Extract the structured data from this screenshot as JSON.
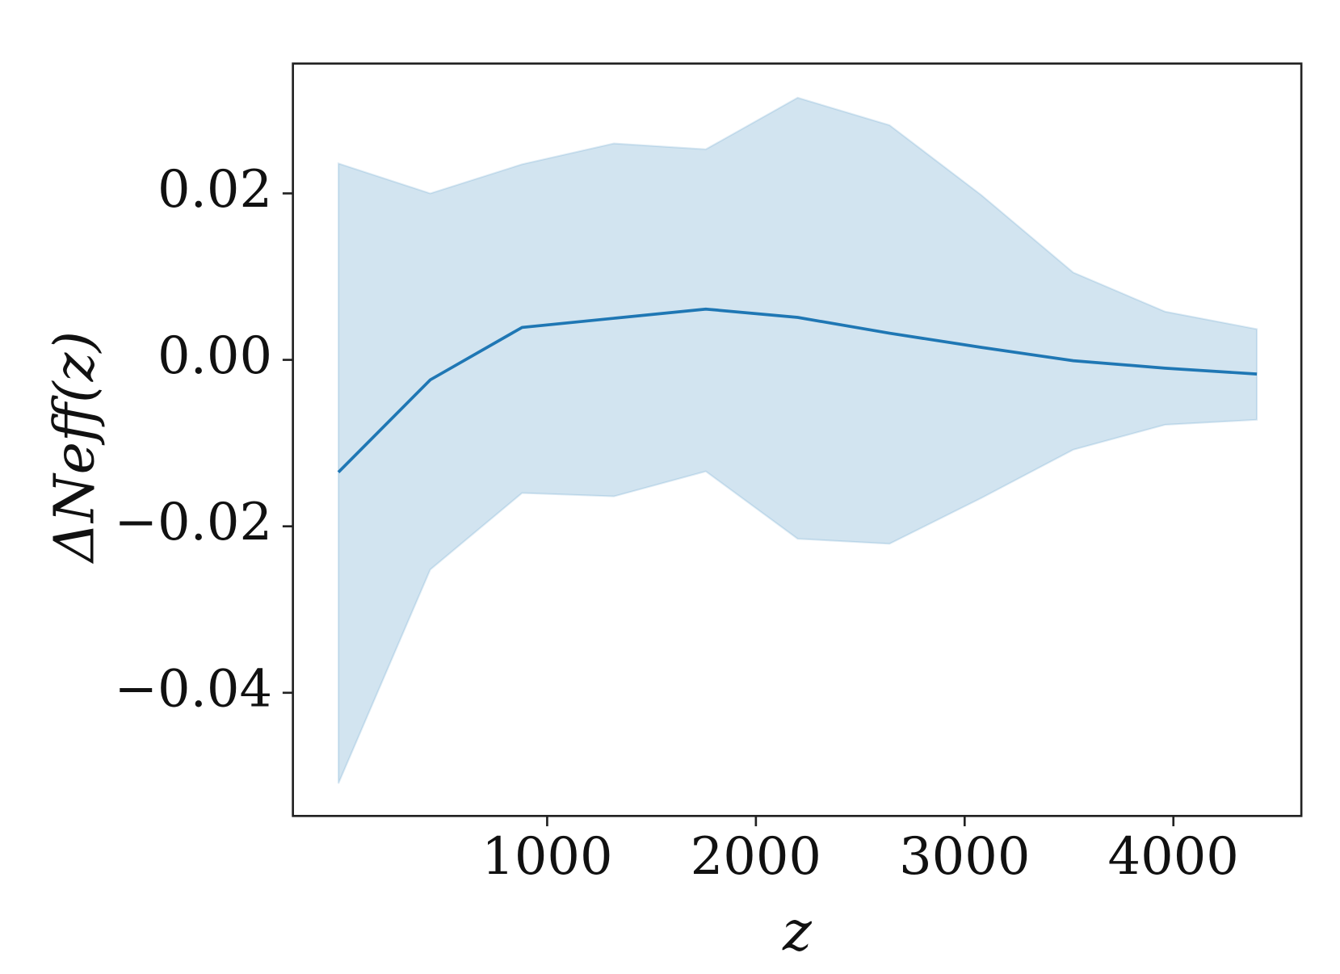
{
  "chart_data": {
    "type": "line",
    "xlabel": "z",
    "ylabel": "ΔNeff(z)",
    "x": [
      0,
      440,
      880,
      1320,
      1760,
      2200,
      2640,
      3080,
      3520,
      3960,
      4400
    ],
    "series": [
      {
        "color": "#1f77b4",
        "values": [
          -0.0135,
          -0.0024,
          0.0039,
          0.005,
          0.0061,
          0.0051,
          0.0032,
          0.0015,
          -0.0001,
          -0.001,
          -0.0017
        ],
        "upper": [
          0.0236,
          0.02,
          0.0235,
          0.026,
          0.0253,
          0.0315,
          0.0282,
          0.0198,
          0.0105,
          0.0058,
          0.0037
        ],
        "lower": [
          -0.0509,
          -0.0252,
          -0.016,
          -0.0164,
          -0.0134,
          -0.0215,
          -0.0221,
          -0.0166,
          -0.0108,
          -0.0078,
          -0.0072
        ]
      }
    ],
    "xlim": [
      -218,
      4613
    ],
    "ylim": [
      -0.0548,
      0.0356
    ],
    "xticks": [
      1000,
      2000,
      3000,
      4000
    ],
    "yticks": [
      {
        "value": -0.04,
        "label": "−0.04"
      },
      {
        "value": -0.02,
        "label": "−0.02"
      },
      {
        "value": 0,
        "label": "0.00"
      },
      {
        "value": 0.02,
        "label": "0.02"
      }
    ]
  }
}
